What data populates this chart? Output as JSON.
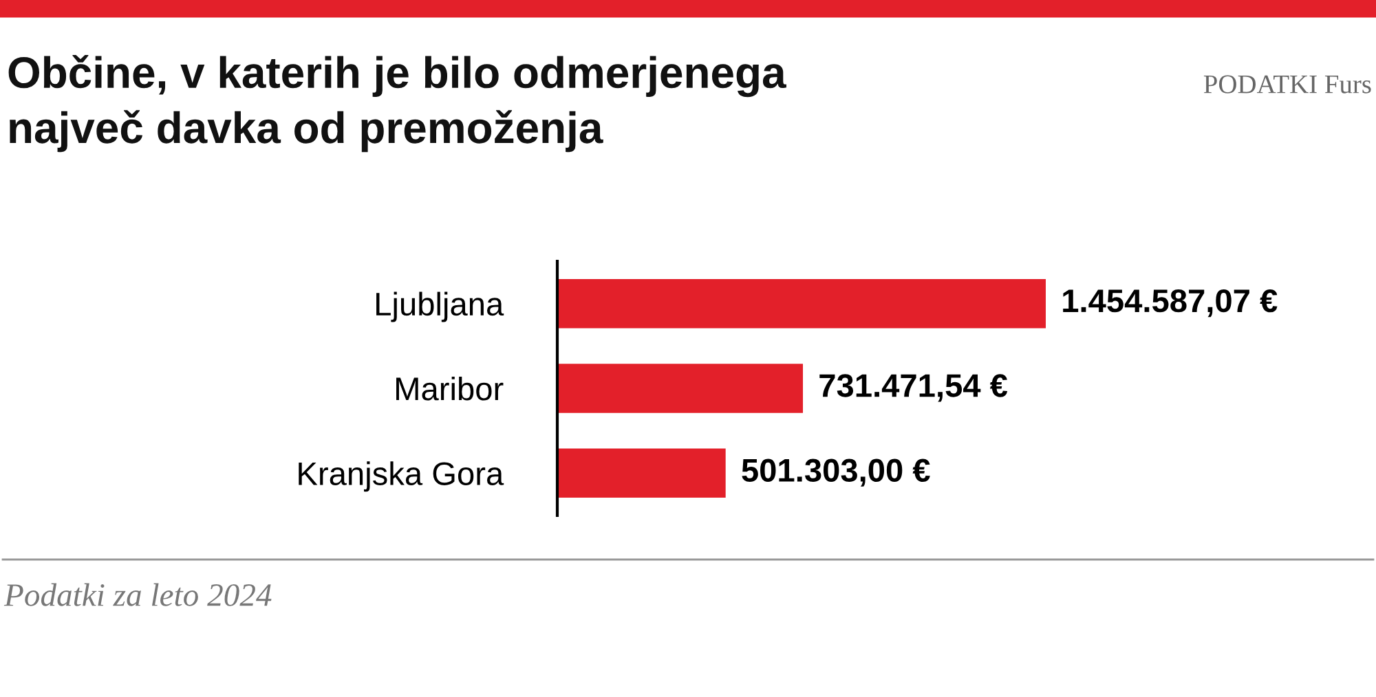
{
  "chart_data": {
    "type": "bar",
    "orientation": "horizontal",
    "data_labels": true,
    "xlim": [
      0,
      1454587.07
    ],
    "title": "Občine, v katerih je bilo odmerjenega\nnajveč davka od premoženja",
    "categories": [
      "Ljubljana",
      "Maribor",
      "Kranjska Gora"
    ],
    "values": [
      1454587.07,
      731471.54,
      501303.0
    ],
    "value_labels": [
      "1.454.587,07 €",
      "731.471,54 €",
      "501.303,00 €"
    ],
    "color": "#e3202a",
    "grid": false,
    "legend": false,
    "annotations": [
      "PODATKI Furs",
      "Podatki za leto 2024"
    ]
  }
}
